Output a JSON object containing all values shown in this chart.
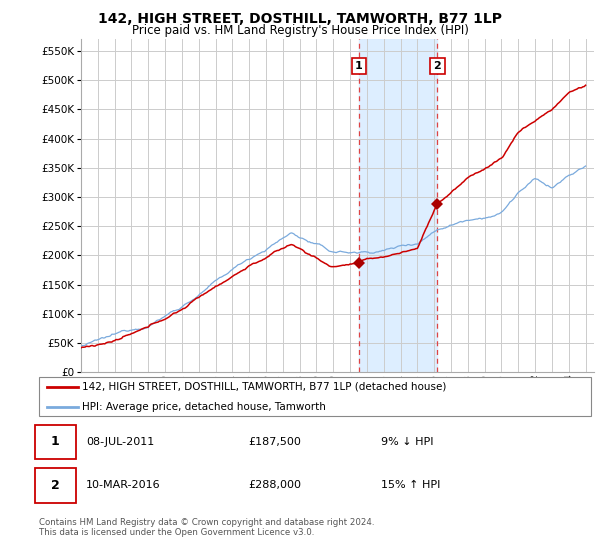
{
  "title": "142, HIGH STREET, DOSTHILL, TAMWORTH, B77 1LP",
  "subtitle": "Price paid vs. HM Land Registry's House Price Index (HPI)",
  "legend_line1": "142, HIGH STREET, DOSTHILL, TAMWORTH, B77 1LP (detached house)",
  "legend_line2": "HPI: Average price, detached house, Tamworth",
  "transaction1_date": "08-JUL-2011",
  "transaction1_price": "£187,500",
  "transaction1_hpi": "9% ↓ HPI",
  "transaction2_date": "10-MAR-2016",
  "transaction2_price": "£288,000",
  "transaction2_hpi": "15% ↑ HPI",
  "footer": "Contains HM Land Registry data © Crown copyright and database right 2024.\nThis data is licensed under the Open Government Licence v3.0.",
  "hpi_color": "#7aaadd",
  "price_color": "#cc0000",
  "marker_color": "#aa0000",
  "highlight_color": "#ddeeff",
  "vline_color": "#dd4444",
  "ylim_min": 0,
  "ylim_max": 570000,
  "transaction1_year": 2011.52,
  "transaction2_year": 2016.19,
  "transaction1_value": 187500,
  "transaction2_value": 288000,
  "background_color": "#ffffff",
  "grid_color": "#cccccc"
}
